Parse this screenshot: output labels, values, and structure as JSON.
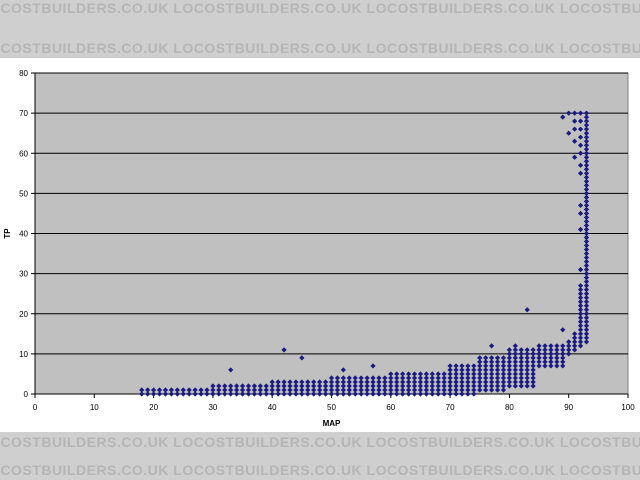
{
  "watermark": "LOCOSTBUILDERS.CO.UK",
  "chart_data": {
    "type": "scatter",
    "title": "",
    "xlabel": "MAP",
    "ylabel": "TP",
    "xlim": [
      0,
      100
    ],
    "ylim": [
      0,
      80
    ],
    "xticks": [
      "0",
      "10",
      "20",
      "30",
      "40",
      "50",
      "60",
      "70",
      "80",
      "90",
      "100"
    ],
    "yticks": [
      "0",
      "10",
      "20",
      "30",
      "40",
      "50",
      "60",
      "70",
      "80"
    ],
    "grid": "horizontal",
    "legend": "none",
    "marker": "diamond",
    "colors": {
      "marker": "#1a1a80",
      "plot_bg": "#c0c0c0",
      "grid": "#000000"
    },
    "bands": [
      {
        "x_from": 18,
        "x_to": 29,
        "y_min": 0,
        "y_max": 1
      },
      {
        "x_from": 30,
        "x_to": 39,
        "y_min": 0,
        "y_max": 2
      },
      {
        "x_from": 40,
        "x_to": 49,
        "y_min": 0,
        "y_max": 3
      },
      {
        "x_from": 50,
        "x_to": 59,
        "y_min": 0,
        "y_max": 4
      },
      {
        "x_from": 60,
        "x_to": 69,
        "y_min": 0,
        "y_max": 5
      },
      {
        "x_from": 70,
        "x_to": 74,
        "y_min": 0,
        "y_max": 7
      },
      {
        "x_from": 75,
        "x_to": 79,
        "y_min": 1,
        "y_max": 9
      },
      {
        "x_from": 80,
        "x_to": 84,
        "y_min": 2,
        "y_max": 11
      },
      {
        "x_from": 85,
        "x_to": 89,
        "y_min": 7,
        "y_max": 12
      },
      {
        "x_from": 90,
        "x_to": 90,
        "y_min": 10,
        "y_max": 13
      },
      {
        "x_from": 91,
        "x_to": 91,
        "y_min": 11,
        "y_max": 15
      },
      {
        "x_from": 92,
        "x_to": 92,
        "y_min": 12,
        "y_max": 26
      },
      {
        "x_from": 93,
        "x_to": 93,
        "y_min": 13,
        "y_max": 70
      }
    ],
    "points": [
      [
        33,
        6
      ],
      [
        42,
        11
      ],
      [
        45,
        9
      ],
      [
        52,
        6
      ],
      [
        57,
        7
      ],
      [
        77,
        12
      ],
      [
        81,
        12
      ],
      [
        83,
        21
      ],
      [
        89,
        16
      ],
      [
        89,
        69
      ],
      [
        90,
        65
      ],
      [
        90,
        70
      ],
      [
        91,
        59
      ],
      [
        91,
        63
      ],
      [
        91,
        66
      ],
      [
        91,
        68
      ],
      [
        91,
        70
      ],
      [
        92,
        31
      ],
      [
        92,
        27
      ],
      [
        92,
        41
      ],
      [
        92,
        45
      ],
      [
        92,
        47
      ],
      [
        92,
        55
      ],
      [
        92,
        57
      ],
      [
        92,
        60
      ],
      [
        92,
        62
      ],
      [
        92,
        64
      ],
      [
        92,
        66
      ],
      [
        92,
        68
      ],
      [
        92,
        70
      ]
    ]
  }
}
